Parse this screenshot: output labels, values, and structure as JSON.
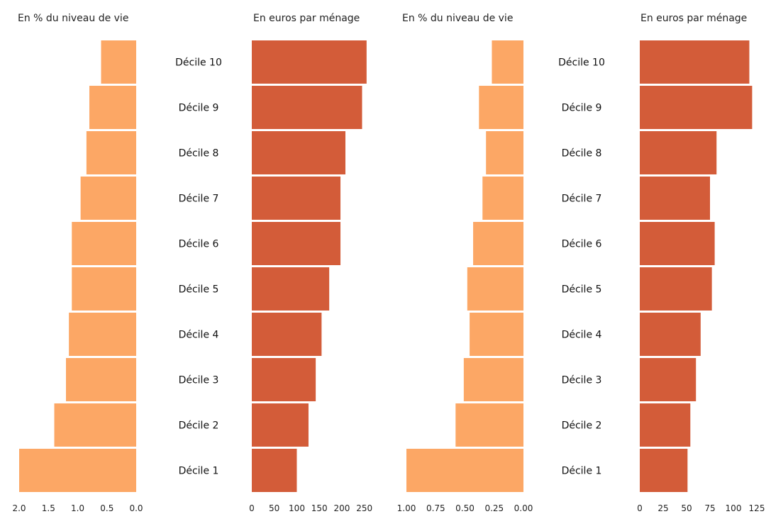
{
  "colors": {
    "light_orange": "#FCA765",
    "dark_orange": "#D35C39",
    "background": "#FFFFFF",
    "text": "#222222"
  },
  "chart_data": [
    {
      "type": "bar",
      "orientation": "horizontal",
      "direction": "right-to-left",
      "title": "En % du niveau de vie",
      "categories": [
        "Décile 10",
        "Décile 9",
        "Décile 8",
        "Décile 7",
        "Décile 6",
        "Décile 5",
        "Décile 4",
        "Décile 3",
        "Décile 2",
        "Décile 1"
      ],
      "values": [
        0.6,
        0.8,
        0.85,
        0.95,
        1.1,
        1.1,
        1.15,
        1.2,
        1.4,
        2.0
      ],
      "xlim": [
        0,
        2
      ],
      "xticks": [
        2.0,
        1.5,
        1.0,
        0.5,
        0.0
      ],
      "xtick_labels": [
        "2.0",
        "1.5",
        "1.0",
        "0.5",
        "0.0"
      ],
      "color": "#FCA765"
    },
    {
      "type": "bar",
      "orientation": "horizontal",
      "direction": "left-to-right",
      "title": "En euros par ménage",
      "categories": [
        "Décile 10",
        "Décile 9",
        "Décile 8",
        "Décile 7",
        "Décile 6",
        "Décile 5",
        "Décile 4",
        "Décile 3",
        "Décile 2",
        "Décile 1"
      ],
      "values": [
        255,
        245,
        208,
        197,
        197,
        172,
        155,
        142,
        126,
        100
      ],
      "xlim": [
        0,
        260
      ],
      "xticks": [
        0,
        50,
        100,
        150,
        200,
        250
      ],
      "xtick_labels": [
        "0",
        "50",
        "100",
        "150",
        "200",
        "250"
      ],
      "color": "#D35C39"
    },
    {
      "type": "bar",
      "orientation": "horizontal",
      "direction": "right-to-left",
      "title": "En % du niveau de vie",
      "categories": [
        "Décile 10",
        "Décile 9",
        "Décile 8",
        "Décile 7",
        "Décile 6",
        "Décile 5",
        "Décile 4",
        "Décile 3",
        "Décile 2",
        "Décile 1"
      ],
      "values": [
        0.27,
        0.38,
        0.32,
        0.35,
        0.43,
        0.48,
        0.46,
        0.51,
        0.58,
        1.0
      ],
      "xlim": [
        0,
        1
      ],
      "xticks": [
        1.0,
        0.75,
        0.5,
        0.25,
        0.0
      ],
      "xtick_labels": [
        "1.00",
        "0.75",
        "0.50",
        "0.25",
        "0.00"
      ],
      "color": "#FCA765"
    },
    {
      "type": "bar",
      "orientation": "horizontal",
      "direction": "left-to-right",
      "title": "En euros par ménage",
      "categories": [
        "Décile 10",
        "Décile 9",
        "Décile 8",
        "Décile 7",
        "Décile 6",
        "Décile 5",
        "Décile 4",
        "Décile 3",
        "Décile 2",
        "Décile 1"
      ],
      "values": [
        117,
        120,
        82,
        75,
        80,
        77,
        65,
        60,
        54,
        51
      ],
      "xlim": [
        0,
        125
      ],
      "xticks": [
        0,
        25,
        50,
        75,
        100,
        125
      ],
      "xtick_labels": [
        "0",
        "25",
        "50",
        "75",
        "100",
        "125"
      ],
      "color": "#D35C39"
    }
  ]
}
